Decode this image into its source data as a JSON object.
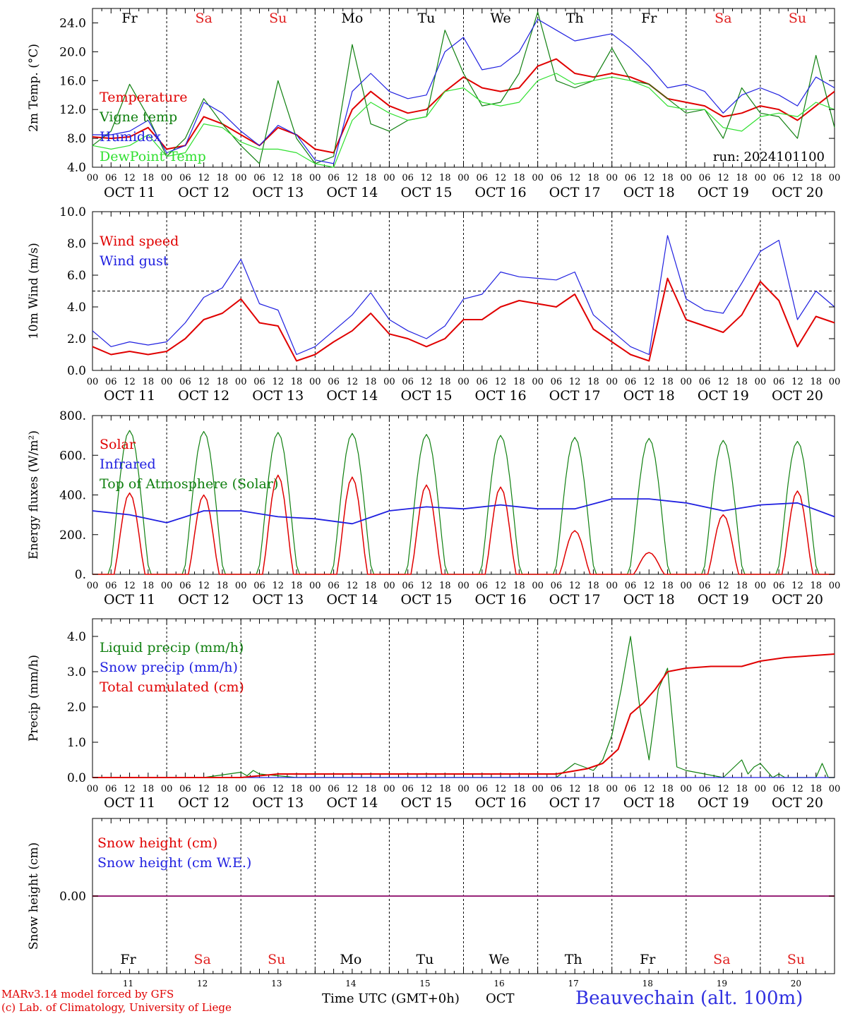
{
  "header": {
    "days_top": [
      "Fr",
      "Sa",
      "Su",
      "Mo",
      "Tu",
      "We",
      "Th",
      "Fr",
      "Sa",
      "Su"
    ],
    "date_labels": [
      "OCT 11",
      "OCT 12",
      "OCT 13",
      "OCT 14",
      "OCT 15",
      "OCT 16",
      "OCT 17",
      "OCT 18",
      "OCT 19",
      "OCT 20"
    ],
    "day_numbers": [
      "11",
      "12",
      "13",
      "14",
      "15",
      "16",
      "17",
      "18",
      "19",
      "20"
    ],
    "hour_ticks": [
      "00",
      "06",
      "12",
      "18"
    ],
    "weekend_color": "#e02020",
    "weekday_color": "#000000"
  },
  "footer": {
    "model_line": "MARv3.14 model forced by GFS",
    "lab_line": "(c) Lab. of Climatology, University of Liege",
    "time_axis_label": "Time UTC (GMT+0h)",
    "month_label": "OCT",
    "station": "Beauvechain (alt. 100m)"
  },
  "chart_data": [
    {
      "type": "line",
      "ylabel": "2m Temp. (°C)",
      "ylim": [
        4,
        26
      ],
      "yticks": [
        "4.0",
        "8.0",
        "12.0",
        "16.0",
        "20.0",
        "24.0"
      ],
      "run_label": "run: 2024101100",
      "x_hours": [
        0,
        6,
        12,
        18,
        24,
        30,
        36,
        42,
        48,
        54,
        60,
        66,
        72,
        78,
        84,
        90,
        96,
        102,
        108,
        114,
        120,
        126,
        132,
        138,
        144,
        150,
        156,
        162,
        168,
        174,
        180,
        186,
        192,
        198,
        204,
        210,
        216,
        222,
        228,
        234,
        240
      ],
      "series": [
        {
          "name": "Temperature",
          "color": "#e00000",
          "values": [
            8.2,
            8.0,
            8.2,
            9.5,
            6.5,
            7.0,
            11.0,
            10.0,
            8.5,
            7.0,
            9.5,
            8.5,
            6.5,
            6.0,
            12.0,
            14.5,
            12.5,
            11.5,
            12.0,
            14.5,
            16.5,
            15.0,
            14.5,
            15.0,
            18.0,
            19.0,
            17.0,
            16.5,
            17.0,
            16.5,
            15.5,
            13.5,
            13.0,
            12.5,
            11.0,
            11.5,
            12.5,
            12.0,
            10.5,
            12.5,
            14.5
          ]
        },
        {
          "name": "Vigne temp",
          "color": "#108010",
          "values": [
            7.0,
            9.0,
            15.5,
            11.0,
            5.5,
            8.0,
            13.5,
            10.0,
            7.0,
            4.5,
            16.0,
            8.0,
            4.5,
            5.5,
            21.0,
            10.0,
            9.0,
            10.5,
            11.0,
            23.0,
            17.0,
            12.5,
            13.0,
            17.0,
            25.5,
            16.0,
            15.0,
            16.0,
            20.5,
            16.0,
            15.5,
            13.5,
            11.5,
            12.0,
            8.0,
            15.0,
            11.5,
            11.0,
            8.0,
            19.5,
            9.5
          ]
        },
        {
          "name": "Humidex",
          "color": "#2020e0",
          "values": [
            8.5,
            8.5,
            9.0,
            10.5,
            6.0,
            7.0,
            13.0,
            11.5,
            9.0,
            7.0,
            9.8,
            8.5,
            5.0,
            4.5,
            14.5,
            17.0,
            14.5,
            13.5,
            14.0,
            20.0,
            22.0,
            17.5,
            18.0,
            20.0,
            24.5,
            23.0,
            21.5,
            22.0,
            22.5,
            20.5,
            18.0,
            15.0,
            15.5,
            14.5,
            11.5,
            14.0,
            15.0,
            14.0,
            12.5,
            16.5,
            15.0
          ]
        },
        {
          "name": "DewPoint Temp",
          "color": "#30e030",
          "values": [
            7.0,
            6.5,
            7.0,
            8.5,
            5.5,
            6.0,
            10.0,
            9.5,
            7.5,
            6.5,
            6.5,
            6.0,
            4.5,
            4.0,
            10.5,
            13.0,
            11.5,
            10.5,
            11.0,
            14.5,
            15.0,
            13.0,
            12.5,
            13.0,
            16.0,
            17.0,
            15.5,
            16.0,
            16.5,
            16.0,
            15.0,
            12.5,
            12.0,
            12.0,
            9.5,
            9.0,
            11.0,
            11.5,
            11.0,
            13.0,
            12.0
          ]
        }
      ]
    },
    {
      "type": "line",
      "ylabel": "10m Wind (m/s)",
      "ylim": [
        0,
        10
      ],
      "yticks": [
        "0.0",
        "2.0",
        "4.0",
        "6.0",
        "8.0",
        "10.0"
      ],
      "reference_line": 5,
      "x_hours": [
        0,
        6,
        12,
        18,
        24,
        30,
        36,
        42,
        48,
        54,
        60,
        66,
        72,
        78,
        84,
        90,
        96,
        102,
        108,
        114,
        120,
        126,
        132,
        138,
        144,
        150,
        156,
        162,
        168,
        174,
        180,
        186,
        192,
        198,
        204,
        210,
        216,
        222,
        228,
        234,
        240
      ],
      "series": [
        {
          "name": "Wind speed",
          "color": "#e00000",
          "values": [
            1.5,
            1.0,
            1.2,
            1.0,
            1.2,
            2.0,
            3.2,
            3.6,
            4.5,
            3.0,
            2.8,
            0.6,
            1.0,
            1.8,
            2.5,
            3.6,
            2.3,
            2.0,
            1.5,
            2.0,
            3.2,
            3.2,
            4.0,
            4.4,
            4.2,
            4.0,
            4.8,
            2.6,
            1.8,
            1.0,
            0.6,
            5.8,
            3.2,
            2.8,
            2.4,
            3.5,
            5.6,
            4.4,
            1.5,
            3.4,
            3.0
          ]
        },
        {
          "name": "Wind gust",
          "color": "#2020e0",
          "values": [
            2.5,
            1.5,
            1.8,
            1.6,
            1.8,
            3.0,
            4.6,
            5.2,
            7.0,
            4.2,
            3.8,
            1.0,
            1.5,
            2.5,
            3.5,
            4.9,
            3.2,
            2.5,
            2.0,
            2.8,
            4.5,
            4.8,
            6.2,
            5.9,
            5.8,
            5.7,
            6.2,
            3.5,
            2.5,
            1.5,
            1.0,
            8.5,
            4.5,
            3.8,
            3.6,
            5.5,
            7.5,
            8.2,
            3.2,
            5.0,
            4.0
          ]
        }
      ]
    },
    {
      "type": "line",
      "ylabel": "Energy fluxes (W/m²)",
      "ylim": [
        0,
        800
      ],
      "yticks": [
        "0.",
        "200.",
        "400.",
        "600.",
        "800."
      ],
      "days": [
        "OCT 11",
        "OCT 12",
        "OCT 13",
        "OCT 14",
        "OCT 15",
        "OCT 16",
        "OCT 17",
        "OCT 18",
        "OCT 19",
        "OCT 20"
      ],
      "series": [
        {
          "name": "Solar",
          "color": "#e00000",
          "daily_peak": [
            410,
            400,
            500,
            490,
            450,
            440,
            220,
            110,
            300,
            420
          ]
        },
        {
          "name": "Infrared",
          "color": "#2020e0",
          "x_hours": [
            0,
            12,
            24,
            36,
            48,
            60,
            72,
            84,
            96,
            108,
            120,
            132,
            144,
            156,
            168,
            180,
            192,
            204,
            216,
            228,
            240
          ],
          "values": [
            320,
            300,
            260,
            320,
            320,
            290,
            280,
            255,
            320,
            340,
            330,
            350,
            330,
            330,
            380,
            380,
            360,
            320,
            350,
            360,
            290
          ]
        },
        {
          "name": "Top of Atmosphere (Solar)",
          "color": "#108010",
          "daily_peak": [
            725,
            720,
            715,
            710,
            705,
            700,
            690,
            685,
            675,
            670
          ]
        }
      ]
    },
    {
      "type": "line",
      "ylabel": "Precip (mm/h)",
      "ylim": [
        0,
        4.5
      ],
      "yticks": [
        "0.0",
        "1.0",
        "2.0",
        "3.0",
        "4.0"
      ],
      "series": [
        {
          "name": "Liquid precip (mm/h)",
          "color": "#108010",
          "x_hours": [
            0,
            18,
            36,
            48,
            50,
            52,
            54,
            60,
            66,
            72,
            150,
            156,
            162,
            165,
            168,
            171,
            174,
            177,
            180,
            183,
            186,
            189,
            192,
            198,
            204,
            210,
            212,
            214,
            216,
            220,
            222,
            224,
            226,
            234,
            236,
            238,
            240
          ],
          "values": [
            0,
            0,
            0,
            0.15,
            0.05,
            0.2,
            0.1,
            0.05,
            0,
            0,
            0,
            0.4,
            0.2,
            0.5,
            1.2,
            2.5,
            4.0,
            2.0,
            0.5,
            2.5,
            3.1,
            0.3,
            0.2,
            0.1,
            0,
            0.5,
            0.1,
            0.3,
            0.4,
            0,
            0.1,
            0,
            0,
            0,
            0.4,
            0,
            0
          ]
        },
        {
          "name": "Snow precip (mm/h)",
          "color": "#2020e0",
          "x_hours": [
            0,
            240
          ],
          "values": [
            0,
            0
          ]
        },
        {
          "name": "Total cumulated (cm)",
          "color": "#e00000",
          "x_hours": [
            0,
            48,
            54,
            60,
            150,
            160,
            165,
            170,
            174,
            178,
            182,
            186,
            192,
            200,
            210,
            216,
            224,
            232,
            240
          ],
          "values": [
            0,
            0,
            0.05,
            0.1,
            0.1,
            0.25,
            0.4,
            0.8,
            1.8,
            2.1,
            2.5,
            3.0,
            3.1,
            3.15,
            3.15,
            3.3,
            3.4,
            3.45,
            3.5
          ]
        }
      ]
    },
    {
      "type": "line",
      "ylabel": "Snow height (cm)",
      "ylim": [
        -1,
        1
      ],
      "yticks": [
        "0.00"
      ],
      "series": [
        {
          "name": "Snow height (cm)",
          "color": "#e00000",
          "x_hours": [
            0,
            240
          ],
          "values": [
            0,
            0
          ]
        },
        {
          "name": "Snow height (cm W.E.)",
          "color": "#2020e0",
          "x_hours": [
            0,
            240
          ],
          "values": [
            0,
            0
          ]
        }
      ]
    }
  ]
}
